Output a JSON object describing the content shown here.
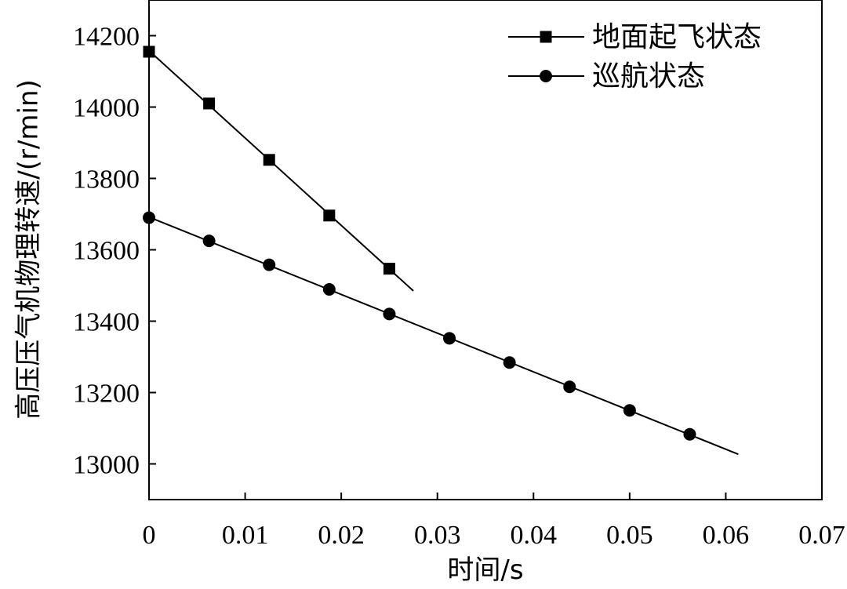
{
  "chart_data": {
    "type": "line",
    "xlabel": "时间/s",
    "ylabel": "高压压气机物理转速/(r/min)",
    "xlim": [
      0,
      0.07
    ],
    "ylim": [
      12900,
      14300
    ],
    "x_ticks": [
      "0",
      "0.01",
      "0.02",
      "0.03",
      "0.04",
      "0.05",
      "0.06",
      "0.07"
    ],
    "y_ticks": [
      "13000",
      "13200",
      "13400",
      "13600",
      "13800",
      "14000",
      "14200"
    ],
    "x_tick_values": [
      0,
      0.01,
      0.02,
      0.03,
      0.04,
      0.05,
      0.06,
      0.07
    ],
    "y_tick_values": [
      13000,
      13200,
      13400,
      13600,
      13800,
      14000,
      14200
    ],
    "grid": false,
    "legend_position": "top-right",
    "series": [
      {
        "name": "地面起飞状态",
        "marker": "square",
        "color": "#000000",
        "line_range": [
          0,
          0.0275
        ],
        "x": [
          0,
          0.00625,
          0.0125,
          0.01875,
          0.025
        ],
        "y": [
          14155,
          14010,
          13852,
          13696,
          13547
        ]
      },
      {
        "name": "巡航状态",
        "marker": "circle",
        "color": "#000000",
        "line_range": [
          0,
          0.0613
        ],
        "x": [
          0,
          0.00625,
          0.0125,
          0.01875,
          0.025,
          0.03125,
          0.0375,
          0.04375,
          0.05,
          0.05625
        ],
        "y": [
          13690,
          13625,
          13558,
          13489,
          13420,
          13352,
          13284,
          13216,
          13150,
          13083
        ]
      }
    ]
  }
}
